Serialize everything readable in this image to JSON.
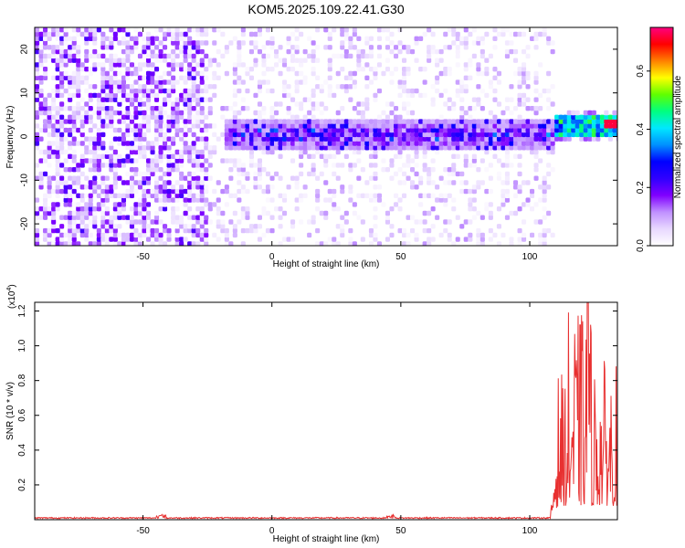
{
  "title": "KOM5.2025.109.22.41.G30",
  "chart_data": [
    {
      "type": "heatmap",
      "xlabel": "Height of straight line (km)",
      "ylabel": "Frequency (Hz)",
      "xlim": [
        -92,
        134
      ],
      "ylim": [
        -25,
        25
      ],
      "xticks": [
        -50,
        0,
        50,
        100
      ],
      "yticks": [
        -20,
        -10,
        0,
        10,
        20
      ],
      "grid": false,
      "colorbar": {
        "label": "Normalized spectral amplitude",
        "range": [
          0,
          0.75
        ],
        "ticks": [
          0,
          0.2,
          0.4,
          0.6
        ],
        "tick_labels": [
          "0.0",
          "0.2",
          "0.4",
          "0.6"
        ],
        "colormap": [
          "#ffffff",
          "#e8d8ff",
          "#c090ff",
          "#8000ff",
          "#3000ff",
          "#0000ff",
          "#0090ff",
          "#00e8ff",
          "#00ff80",
          "#60ff00",
          "#ffff00",
          "#ff8000",
          "#ff0000",
          "#ff0080"
        ]
      },
      "features": {
        "noise_region_km": [
          -92,
          -25
        ],
        "scattered_region_km": [
          -25,
          108
        ],
        "signal_band_km": [
          -20,
          108
        ],
        "signal_band_freq_hz": [
          -3,
          3
        ],
        "strong_band_km": [
          108,
          134
        ],
        "strong_band_freq_hz": [
          0,
          4
        ],
        "peak_amplitude": 0.72,
        "peak_km": 131,
        "peak_freq_hz": 2.5
      }
    },
    {
      "type": "line",
      "xlabel": "Height of straight line (km)",
      "ylabel": "SNR (10 * v/v)",
      "y_multiplier_label": "(x10",
      "y_multiplier_exp": "4",
      "y_multiplier_close": ")",
      "xlim": [
        -92,
        134
      ],
      "ylim": [
        0,
        1.25
      ],
      "xticks": [
        -50,
        0,
        50,
        100
      ],
      "yticks": [
        0.2,
        0.4,
        0.6,
        0.8,
        1.0,
        1.2
      ],
      "ytick_labels": [
        "0.2",
        "0.4",
        "0.6",
        "0.8",
        "1.0",
        "1.2"
      ],
      "grid": false,
      "series": [
        {
          "color": "#e83030",
          "baseline_value": 0.01,
          "onset_km": 108,
          "burst_max": 1.25,
          "burst_mean": 0.45
        }
      ]
    }
  ]
}
